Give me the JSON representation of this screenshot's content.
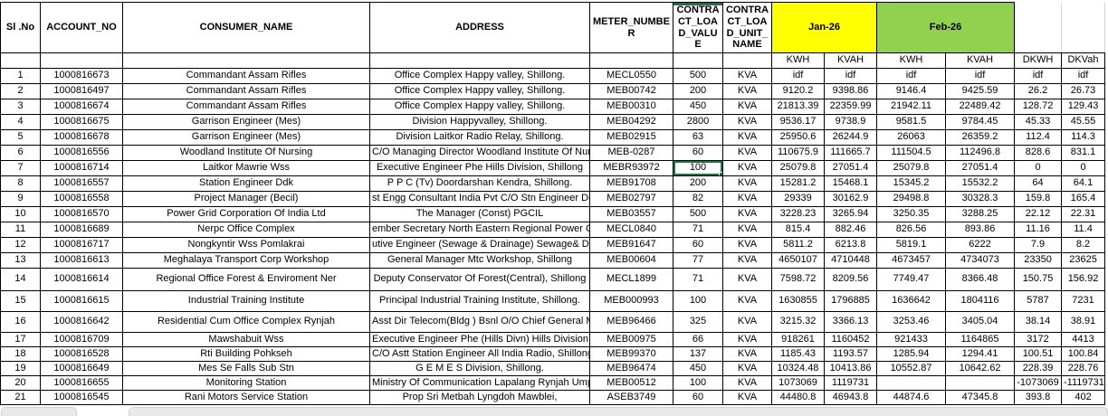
{
  "table": {
    "headers": {
      "sl_no": "Sl .No",
      "account_no": "ACCOUNT_NO",
      "consumer_name": "CONSUMER_NAME",
      "address": "ADDRESS",
      "meter_number": "METER_NUMBER",
      "contract_load_value": "CONTRACT_LOAD_VALUE",
      "contract_load_unit_name": "CONTRACT_LOAD_UNIT_NAME",
      "month1": "Jan-26",
      "month2": "Feb-26",
      "sub": [
        "KWH",
        "KVAH",
        "KWH",
        "KVAH",
        "DKWH",
        "DKVah"
      ]
    },
    "colors": {
      "month1_bg": "#FFFF00",
      "month2_bg": "#92D050",
      "selection_border": "#217346",
      "grid_black": "#000000",
      "gridline_gray": "#d4d4d4"
    },
    "selection": {
      "row_sl": "7",
      "column_key": "clv"
    },
    "rows": [
      {
        "sl": "1",
        "account": "1000816673",
        "consumer": "Commandant Assam Rifles",
        "address": "Office Complex Happy valley, Shillong.",
        "meter": "MECL0550",
        "clv": "500",
        "unit": "KVA",
        "m1_kwh": "idf",
        "m1_kvah": "idf",
        "m2_kwh": "idf",
        "m2_kvah": "idf",
        "dkwh": "idf",
        "dkvah": "idf"
      },
      {
        "sl": "2",
        "account": "1000816497",
        "consumer": "Commandant Assam Rifles",
        "address": "Office Complex Happy valley, Shillong.",
        "meter": "MEB00742",
        "clv": "200",
        "unit": "KVA",
        "m1_kwh": "9120.2",
        "m1_kvah": "9398.86",
        "m2_kwh": "9146.4",
        "m2_kvah": "9425.59",
        "dkwh": "26.2",
        "dkvah": "26.73"
      },
      {
        "sl": "3",
        "account": "1000816674",
        "consumer": "Commandant Assam Rifles",
        "address": "Office Complex Happy valley, Shillong.",
        "meter": "MEB00310",
        "clv": "450",
        "unit": "KVA",
        "m1_kwh": "21813.39",
        "m1_kvah": "22359.99",
        "m2_kwh": "21942.11",
        "m2_kvah": "22489.42",
        "dkwh": "128.72",
        "dkvah": "129.43"
      },
      {
        "sl": "4",
        "account": "1000816675",
        "consumer": "Garrison Engineer (Mes)",
        "address": "Division Happyvalley, Shillong.",
        "meter": "MEB04292",
        "clv": "2800",
        "unit": "KVA",
        "m1_kwh": "9536.17",
        "m1_kvah": "9738.9",
        "m2_kwh": "9581.5",
        "m2_kvah": "9784.45",
        "dkwh": "45.33",
        "dkvah": "45.55"
      },
      {
        "sl": "5",
        "account": "1000816678",
        "consumer": "Garrison Engineer (Mes)",
        "address": "Division Laitkor Radio Relay, Shillong.",
        "meter": "MEB02915",
        "clv": "63",
        "unit": "KVA",
        "m1_kwh": "25950.6",
        "m1_kvah": "26244.9",
        "m2_kwh": "26063",
        "m2_kvah": "26359.2",
        "dkwh": "112.4",
        "dkvah": "114.3"
      },
      {
        "sl": "6",
        "account": "1000816556",
        "consumer": "Woodland Institute Of Nursing",
        "address": "C/O Managing Director Woodland Institute Of Nursing,",
        "meter": "MEB-0287",
        "clv": "60",
        "unit": "KVA",
        "m1_kwh": "110675.9",
        "m1_kvah": "111665.7",
        "m2_kwh": "111504.5",
        "m2_kvah": "112496.8",
        "dkwh": "828.6",
        "dkvah": "831.1"
      },
      {
        "sl": "7",
        "account": "1000816714",
        "consumer": "Laitkor Mawrie Wss",
        "address": "Executive Engineer Phe Hills Division, Shillong",
        "meter": "MEBR93972",
        "clv": "100",
        "unit": "KVA",
        "m1_kwh": "25079.8",
        "m1_kvah": "27051.4",
        "m2_kwh": "25079.8",
        "m2_kvah": "27051.4",
        "dkwh": "0",
        "dkvah": "0"
      },
      {
        "sl": "8",
        "account": "1000816557",
        "consumer": "Station Engineer Ddk",
        "address": "P P C (Tv) Doordarshan Kendra, Shillong.",
        "meter": "MEB91708",
        "clv": "200",
        "unit": "KVA",
        "m1_kwh": "15281.2",
        "m1_kvah": "15468.1",
        "m2_kwh": "15345.2",
        "m2_kvah": "15532.2",
        "dkwh": "64",
        "dkvah": "64.1"
      },
      {
        "sl": "9",
        "account": "1000816558",
        "consumer": "Project Manager (Becil)",
        "address": "st Engg Consultant India Pvt C/O Stn Engineer Ddk Laitkor, Shillong. #",
        "meter": "MEB02797",
        "clv": "82",
        "unit": "KVA",
        "m1_kwh": "29339",
        "m1_kvah": "30162.9",
        "m2_kwh": "29498.8",
        "m2_kvah": "30328.3",
        "dkwh": "159.8",
        "dkvah": "165.4"
      },
      {
        "sl": "10",
        "account": "1000816570",
        "consumer": "Power Grid Corporation Of India Ltd",
        "address": "The Manager (Const) PGCIL",
        "meter": "MEB03557",
        "clv": "500",
        "unit": "KVA",
        "m1_kwh": "3228.23",
        "m1_kvah": "3265.94",
        "m2_kwh": "3250.35",
        "m2_kvah": "3288.25",
        "dkwh": "22.12",
        "dkvah": "22.31"
      },
      {
        "sl": "11",
        "account": "1000816689",
        "consumer": "Nerpc Office Complex",
        "address": "ember Secretary North Eastern Regional Power Committee, Shillong",
        "meter": "MECL0840",
        "clv": "71",
        "unit": "KVA",
        "m1_kwh": "815.4",
        "m1_kvah": "882.46",
        "m2_kwh": "826.56",
        "m2_kvah": "893.86",
        "dkwh": "11.16",
        "dkvah": "11.4"
      },
      {
        "sl": "12",
        "account": "1000816717",
        "consumer": "Nongkyntir Wss Pomlakrai",
        "address": "utive Engineer (Sewage & Drainage) Sewage& Drainage Division, Shi",
        "meter": "MEB91647",
        "clv": "60",
        "unit": "KVA",
        "m1_kwh": "5811.2",
        "m1_kvah": "6213.8",
        "m2_kwh": "5819.1",
        "m2_kvah": "6222",
        "dkwh": "7.9",
        "dkvah": "8.2"
      },
      {
        "sl": "13",
        "account": "1000816613",
        "consumer": "Meghalaya Transport Corp Workshop",
        "address": "General Manager Mtc Workshop, Shillong",
        "meter": "MEB00604",
        "clv": "77",
        "unit": "KVA",
        "m1_kwh": "4650107",
        "m1_kvah": "4710448",
        "m2_kwh": "4673457",
        "m2_kvah": "4734073",
        "dkwh": "23350",
        "dkvah": "23625"
      },
      {
        "sl": "14",
        "account": "1000816614",
        "consumer": "Regional Office Forest & Enviroment Ner",
        "address": "Deputy Conservator Of Forest(Central), Shillong",
        "meter": "MECL1899",
        "clv": "71",
        "unit": "KVA",
        "m1_kwh": "7598.72",
        "m1_kvah": "8209.56",
        "m2_kwh": "7749.47",
        "m2_kvah": "8366.48",
        "dkwh": "150.75",
        "dkvah": "156.92"
      },
      {
        "sl": "15",
        "account": "1000816615",
        "consumer": "Industrial Training Institute",
        "address": "Principal Industrial Training Institute, Shillong.",
        "meter": "MEB000993",
        "clv": "100",
        "unit": "KVA",
        "m1_kwh": "1630855",
        "m1_kvah": "1796885",
        "m2_kwh": "1636642",
        "m2_kvah": "1804116",
        "dkwh": "5787",
        "dkvah": "7231"
      },
      {
        "sl": "16",
        "account": "1000816642",
        "consumer": "Residential Cum Office Complex Rynjah",
        "address": "Asst Dir Telecom(Bldg ) Bsnl O/O Chief General Manager Telecom",
        "meter": "MEB96466",
        "clv": "325",
        "unit": "KVA",
        "m1_kwh": "3215.32",
        "m1_kvah": "3366.13",
        "m2_kwh": "3253.46",
        "m2_kvah": "3405.04",
        "dkwh": "38.14",
        "dkvah": "38.91"
      },
      {
        "sl": "17",
        "account": "1000816709",
        "consumer": "Mawshabuit Wss",
        "address": "Executive Engineer Phe (Hills Divn) Hills Division, Shillong.",
        "meter": "MEB00975",
        "clv": "66",
        "unit": "KVA",
        "m1_kwh": "918261",
        "m1_kvah": "1160452",
        "m2_kwh": "921433",
        "m2_kvah": "1164865",
        "dkwh": "3172",
        "dkvah": "4413"
      },
      {
        "sl": "18",
        "account": "1000816528",
        "consumer": "Rti Building Pohkseh",
        "address": "C/O Astt Station Engineer All India Radio, Shillong.",
        "meter": "MEB99370",
        "clv": "137",
        "unit": "KVA",
        "m1_kwh": "1185.43",
        "m1_kvah": "1193.57",
        "m2_kwh": "1285.94",
        "m2_kvah": "1294.41",
        "dkwh": "100.51",
        "dkvah": "100.84"
      },
      {
        "sl": "19",
        "account": "1000816649",
        "consumer": "Mes Se Falls Sub Stn",
        "address": "G E M E S Division, Shillong.",
        "meter": "MEB96474",
        "clv": "450",
        "unit": "KVA",
        "m1_kwh": "10324.48",
        "m1_kvah": "10413.86",
        "m2_kwh": "10552.87",
        "m2_kvah": "10642.62",
        "dkwh": "228.39",
        "dkvah": "228.76"
      },
      {
        "sl": "20",
        "account": "1000816655",
        "consumer": "Monitoring Station",
        "address": "Ministry Of Communication Lapalang Rynjah Umpling, Shillong.",
        "meter": "MEB00512",
        "clv": "100",
        "unit": "KVA",
        "m1_kwh": "1073069",
        "m1_kvah": "1119731",
        "m2_kwh": "",
        "m2_kvah": "",
        "dkwh": "-1073069",
        "dkvah": "-1119731"
      },
      {
        "sl": "21",
        "account": "1000816545",
        "consumer": "Rani Motors Service Station",
        "address": "Prop Sri Metbah Lyngdoh Mawblei,",
        "meter": "ASEB3749",
        "clv": "60",
        "unit": "KVA",
        "m1_kwh": "44480.8",
        "m1_kvah": "46943.8",
        "m2_kwh": "44874.6",
        "m2_kvah": "47345.8",
        "dkwh": "393.8",
        "dkvah": "402"
      }
    ]
  }
}
